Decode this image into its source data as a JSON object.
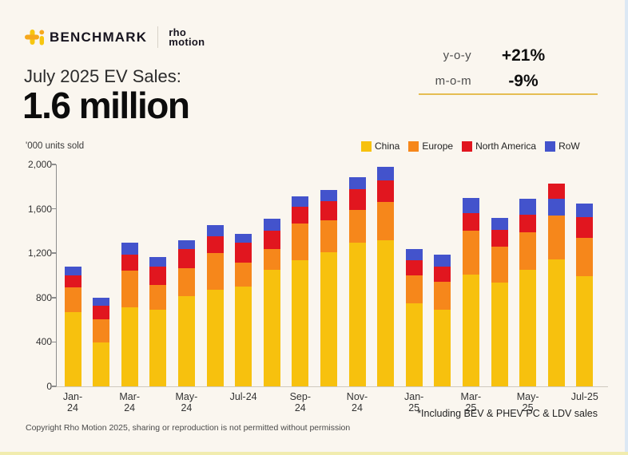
{
  "header": {
    "brand": "BENCHMARK",
    "partner": {
      "line1": "rho",
      "line2": "motion"
    }
  },
  "stats": {
    "rows": [
      {
        "label": "y-o-y",
        "value": "+21%"
      },
      {
        "label": "m-o-m",
        "value": "-9%"
      }
    ],
    "underline_color": "#E5BD52"
  },
  "title": {
    "subtitle": "July 2025 EV Sales:",
    "headline": "1.6 million"
  },
  "footnote": "*Including BEV & PHEV PC & LDV sales",
  "copyright": "Copyright Rho Motion 2025, sharing or reproduction is not permitted without permission",
  "chart_data": {
    "type": "bar",
    "subtype": "stacked",
    "unit_label": "'000 units sold",
    "ylim": [
      0,
      2000
    ],
    "grid": false,
    "legend_position": "top-right",
    "yticks": [
      {
        "value": 0,
        "label": "0"
      },
      {
        "value": 400,
        "label": "400"
      },
      {
        "value": 800,
        "label": "800"
      },
      {
        "value": 1200,
        "label": "1,200"
      },
      {
        "value": 1600,
        "label": "1,600"
      },
      {
        "value": 2000,
        "label": "2,000"
      }
    ],
    "categories": [
      "Jan-24",
      "Feb-24",
      "Mar-24",
      "Apr-24",
      "May-24",
      "Jun-24",
      "Jul-24",
      "Aug-24",
      "Sep-24",
      "Oct-24",
      "Nov-24",
      "Dec-24",
      "Jan-25",
      "Feb-25",
      "Mar-25",
      "Apr-25",
      "May-25",
      "Jun-25",
      "Jul-25"
    ],
    "xticks": [
      {
        "index": 0,
        "lines": [
          "Jan-",
          "24"
        ]
      },
      {
        "index": 2,
        "lines": [
          "Mar-",
          "24"
        ]
      },
      {
        "index": 4,
        "lines": [
          "May-",
          "24"
        ]
      },
      {
        "index": 6,
        "lines": [
          "Jul-24"
        ]
      },
      {
        "index": 8,
        "lines": [
          "Sep-",
          "24"
        ]
      },
      {
        "index": 10,
        "lines": [
          "Nov-",
          "24"
        ]
      },
      {
        "index": 12,
        "lines": [
          "Jan-",
          "25"
        ]
      },
      {
        "index": 14,
        "lines": [
          "Mar-",
          "25"
        ]
      },
      {
        "index": 16,
        "lines": [
          "May-",
          "25"
        ]
      },
      {
        "index": 18,
        "lines": [
          "Jul-25"
        ]
      }
    ],
    "series": [
      {
        "name": "China",
        "color": "#F7C10E",
        "values": [
          670,
          395,
          710,
          690,
          815,
          870,
          900,
          1050,
          1140,
          1210,
          1295,
          1320,
          745,
          690,
          1005,
          935,
          1050,
          1145,
          995
        ]
      },
      {
        "name": "Europe",
        "color": "#F6871B",
        "values": [
          220,
          210,
          330,
          225,
          250,
          330,
          215,
          190,
          330,
          285,
          295,
          345,
          255,
          250,
          395,
          325,
          340,
          395,
          340
        ]
      },
      {
        "name": "North America",
        "color": "#E1161F",
        "values": [
          110,
          125,
          150,
          165,
          175,
          155,
          180,
          165,
          145,
          175,
          190,
          190,
          135,
          140,
          165,
          150,
          155,
          135,
          190
        ]
      },
      {
        "name": "RoW",
        "color": "#4353CC",
        "values": [
          80,
          70,
          105,
          85,
          80,
          100,
          80,
          105,
          100,
          100,
          105,
          125,
          105,
          105,
          135,
          105,
          145,
          150,
          125
        ]
      }
    ],
    "stack_order_default": [
      "China",
      "Europe",
      "North America",
      "RoW"
    ],
    "stack_order_exceptions": {
      "Jun-25": [
        "China",
        "Europe",
        "RoW",
        "North America"
      ]
    }
  }
}
